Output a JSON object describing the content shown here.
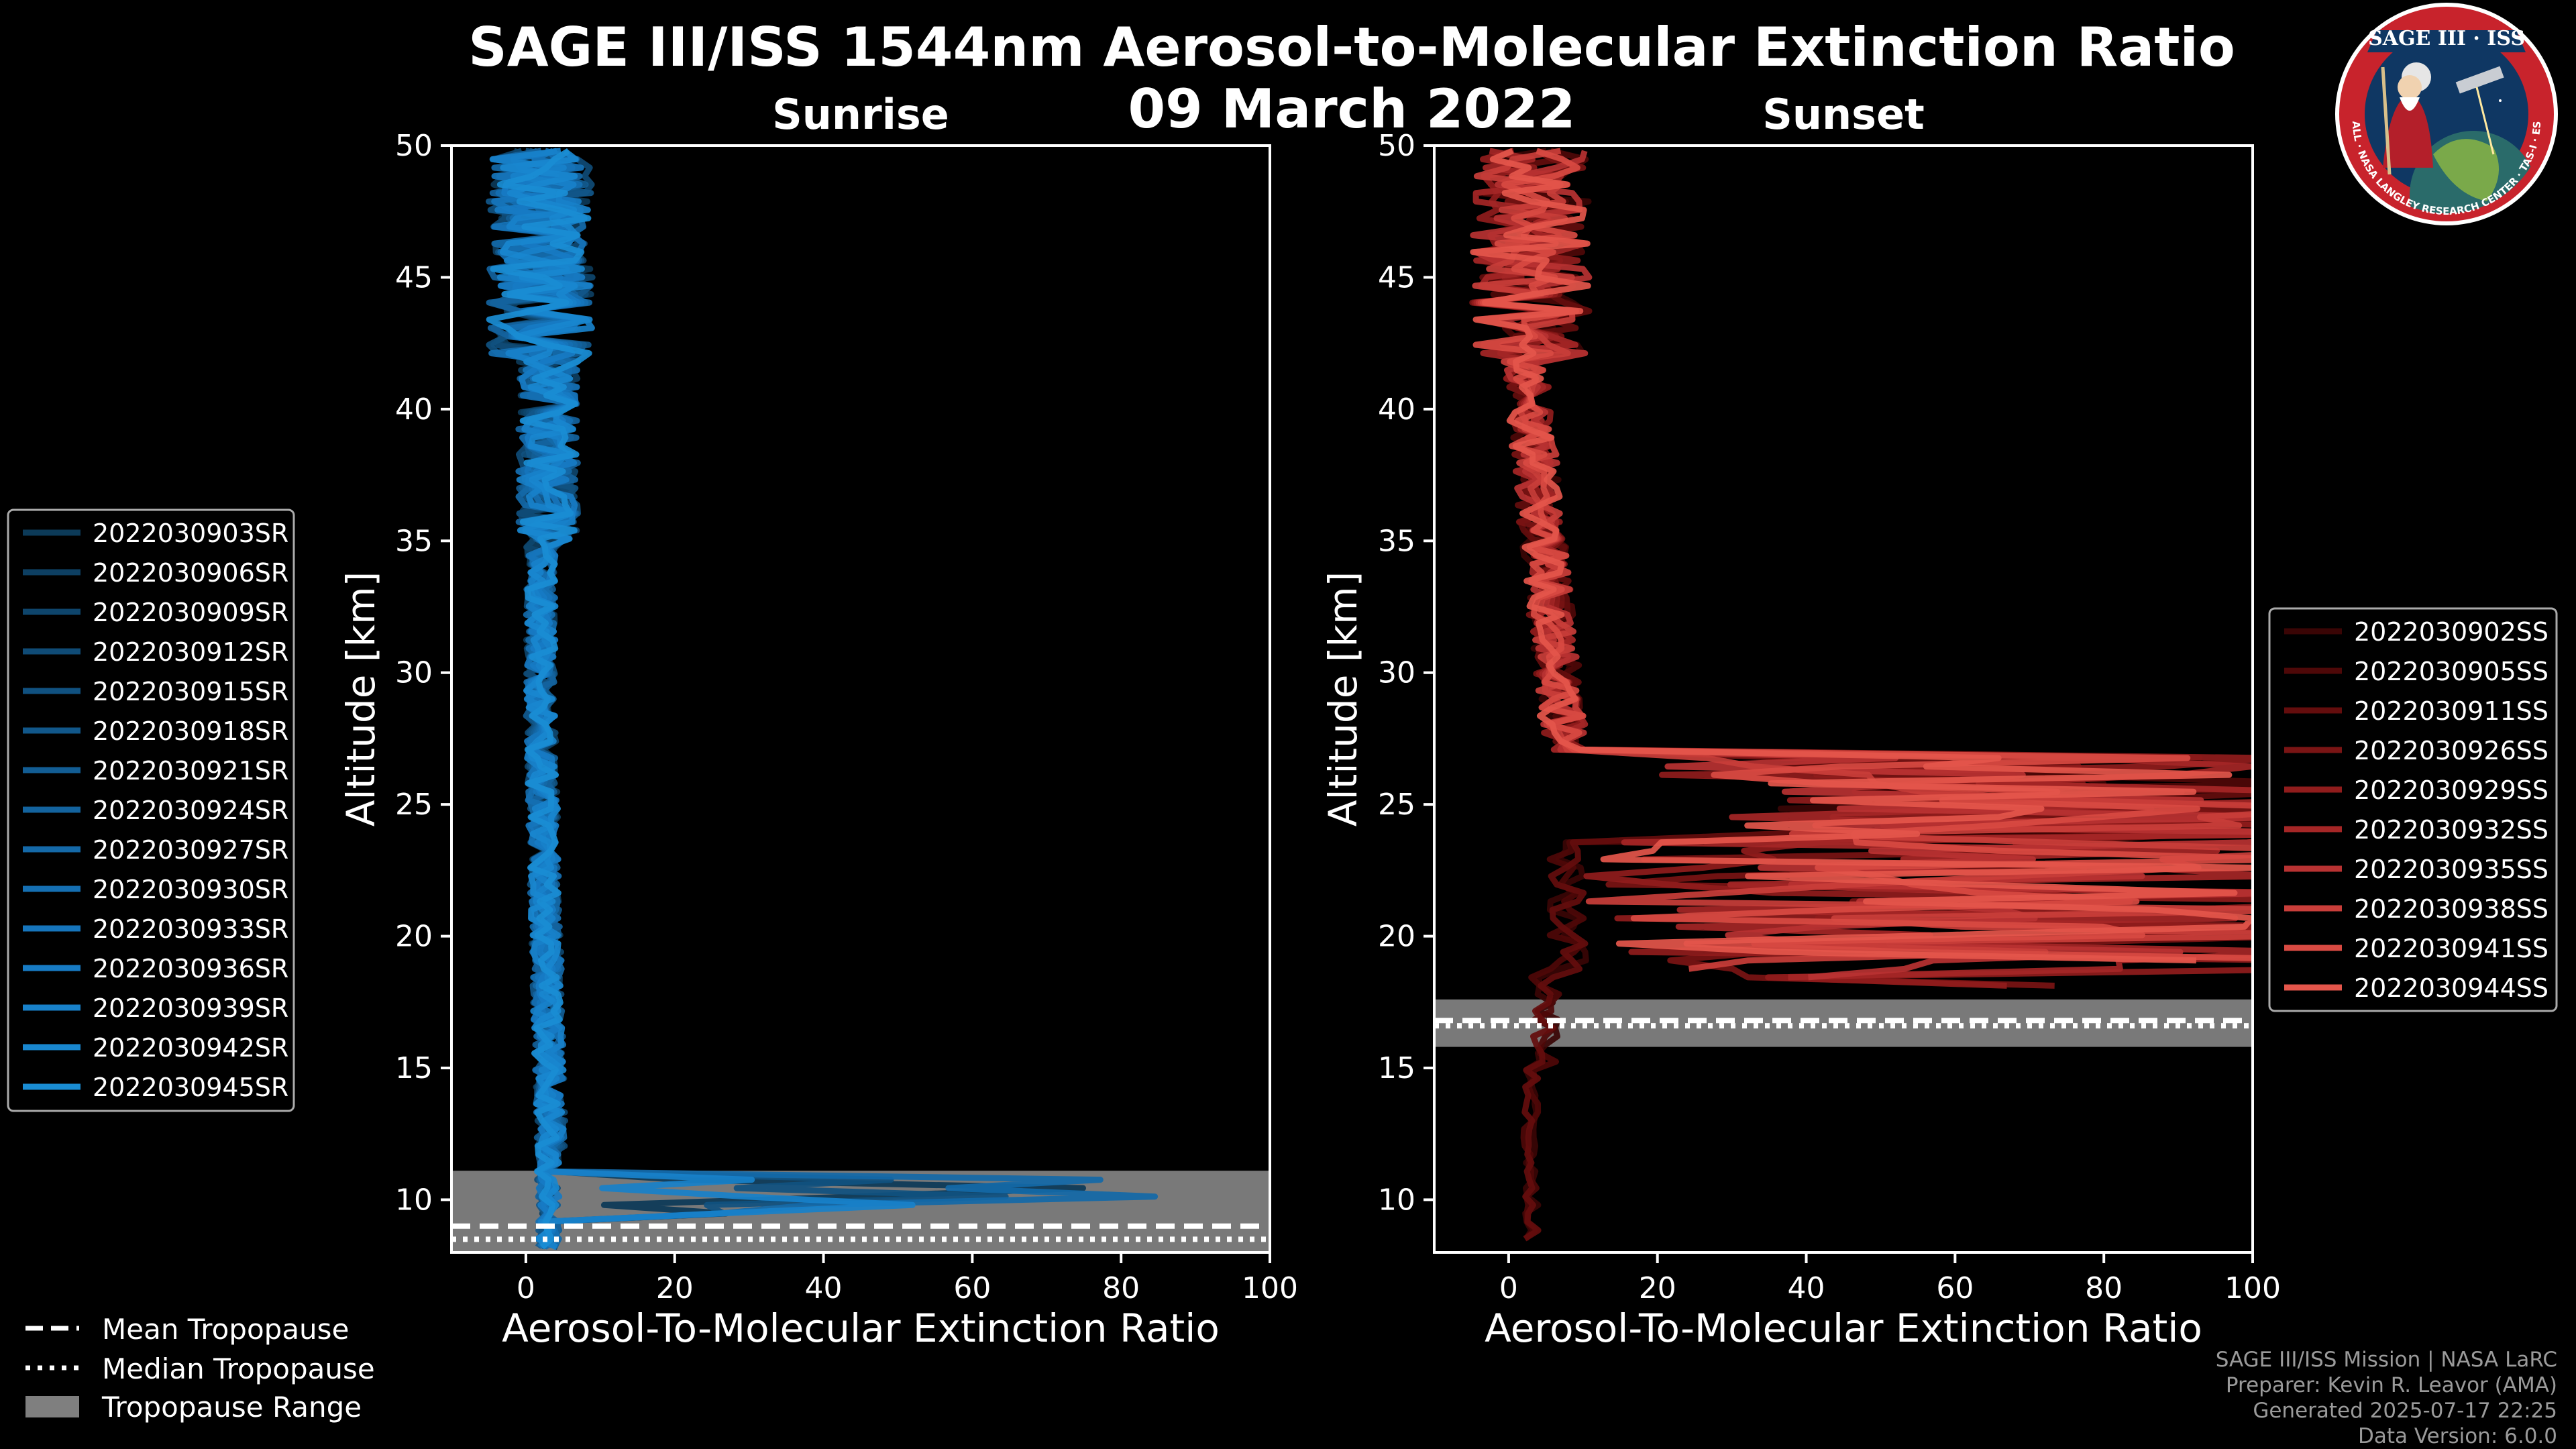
{
  "chart_data": [
    {
      "type": "line",
      "panel": "sunrise",
      "title": "Sunrise",
      "xlabel": "Aerosol-To-Molecular Extinction Ratio",
      "ylabel": "Altitude [km]",
      "xlim": [
        -10,
        100
      ],
      "ylim": [
        8,
        50
      ],
      "xticks": [
        "0",
        "20",
        "40",
        "60",
        "80",
        "100"
      ],
      "yticks": [
        "10",
        "15",
        "20",
        "25",
        "30",
        "35",
        "40",
        "45",
        "50"
      ],
      "tropopause": {
        "mean": 9.0,
        "median": 8.5,
        "range": [
          8.0,
          11.1
        ]
      },
      "legend_position": "left",
      "series": [
        {
          "name": "2022030903SR",
          "color": "#0c3a58"
        },
        {
          "name": "2022030906SR",
          "color": "#0d3f62"
        },
        {
          "name": "2022030909SR",
          "color": "#0e456c"
        },
        {
          "name": "2022030912SR",
          "color": "#0f4b76"
        },
        {
          "name": "2022030915SR",
          "color": "#105180"
        },
        {
          "name": "2022030918SR",
          "color": "#11578a"
        },
        {
          "name": "2022030921SR",
          "color": "#125d94"
        },
        {
          "name": "2022030924SR",
          "color": "#13639e"
        },
        {
          "name": "2022030927SR",
          "color": "#1469a8"
        },
        {
          "name": "2022030930SR",
          "color": "#156fb2"
        },
        {
          "name": "2022030933SR",
          "color": "#1675bc"
        },
        {
          "name": "2022030936SR",
          "color": "#177bc4"
        },
        {
          "name": "2022030939SR",
          "color": "#1881ca"
        },
        {
          "name": "2022030942SR",
          "color": "#1987cf"
        },
        {
          "name": "2022030945SR",
          "color": "#1a8dd4"
        }
      ]
    },
    {
      "type": "line",
      "panel": "sunset",
      "title": "Sunset",
      "xlabel": "Aerosol-To-Molecular Extinction Ratio",
      "ylabel": "Altitude [km]",
      "xlim": [
        -10,
        100
      ],
      "ylim": [
        8,
        50
      ],
      "xticks": [
        "0",
        "20",
        "40",
        "60",
        "80",
        "100"
      ],
      "yticks": [
        "10",
        "15",
        "20",
        "25",
        "30",
        "35",
        "40",
        "45",
        "50"
      ],
      "tropopause": {
        "mean": 16.8,
        "median": 16.6,
        "range": [
          15.8,
          17.6
        ]
      },
      "legend_position": "right",
      "series": [
        {
          "name": "2022030902SS",
          "color": "#3a0505"
        },
        {
          "name": "2022030905SS",
          "color": "#4e0808"
        },
        {
          "name": "2022030911SS",
          "color": "#640d0d"
        },
        {
          "name": "2022030926SS",
          "color": "#7a1414"
        },
        {
          "name": "2022030929SS",
          "color": "#901c1c"
        },
        {
          "name": "2022030932SS",
          "color": "#a52626"
        },
        {
          "name": "2022030935SS",
          "color": "#b83232"
        },
        {
          "name": "2022030938SS",
          "color": "#c93e3a"
        },
        {
          "name": "2022030941SS",
          "color": "#d84a42"
        },
        {
          "name": "2022030944SS",
          "color": "#e4564b"
        }
      ]
    }
  ],
  "header": {
    "title_line1": "SAGE III/ISS 1544nm Aerosol-to-Molecular Extinction Ratio",
    "title_line2": "09 March 2022"
  },
  "tropopause_legend": {
    "mean": "Mean Tropopause",
    "median": "Median Tropopause",
    "range": "Tropopause Range"
  },
  "footer": {
    "line1": "SAGE III/ISS Mission | NASA LaRC",
    "line2": "Preparer: Kevin R. Leavor (AMA)",
    "line3": "Generated 2025-07-17 22:25",
    "line4": "Data Version: 6.0.0"
  },
  "logo": {
    "top_text": "SAGE III · ISS",
    "ring_text": "BALL · NASA LANGLEY RESEARCH CENTER · TAS-I · ESA"
  },
  "colors": {
    "background": "#000000",
    "sunrise_accent": "#1a8dd4",
    "sunset_accent": "#e4564b",
    "tropopause_band": "#7f7f7f"
  }
}
